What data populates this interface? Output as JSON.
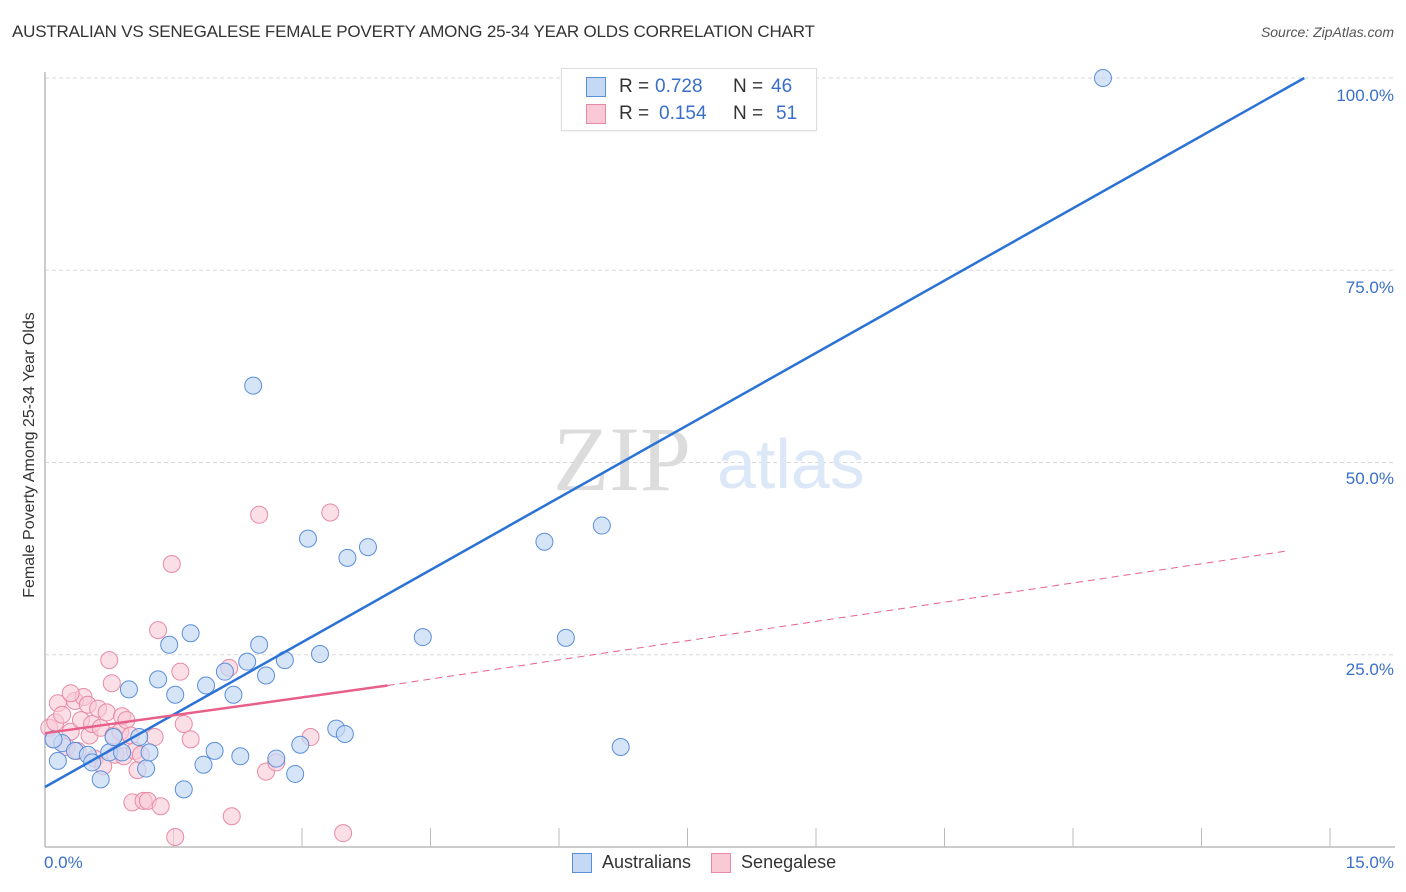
{
  "header": {
    "title": "AUSTRALIAN VS SENEGALESE FEMALE POVERTY AMONG 25-34 YEAR OLDS CORRELATION CHART",
    "source": "Source: ZipAtlas.com"
  },
  "watermark": {
    "zip": "ZIP",
    "atlas": "atlas"
  },
  "colors": {
    "blue_fill": "#c5d9f5",
    "blue_stroke": "#5b8fd9",
    "blue_line": "#2a72d5",
    "pink_fill": "#f9c9d6",
    "pink_stroke": "#e88aa6",
    "pink_line": "#e8608a",
    "axis_text": "#3a6fc9",
    "grid": "#d8d8d8"
  },
  "legend": {
    "rows": [
      {
        "r_label": "R =",
        "r_value": "0.728",
        "n_label": "N =",
        "n_value": "46",
        "series": "Australians"
      },
      {
        "r_label": "R =",
        "r_value": "0.154",
        "n_label": "N =",
        "n_value": "51",
        "series": "Senegalese"
      }
    ]
  },
  "bottom_legend": {
    "items": [
      {
        "label": "Australians"
      },
      {
        "label": "Senegalese"
      }
    ]
  },
  "axes": {
    "ylabel": "Female Poverty Among 25-34 Year Olds",
    "y_ticks": [
      "100.0%",
      "75.0%",
      "50.0%",
      "25.0%"
    ],
    "x_ticks": [
      "0.0%",
      "15.0%"
    ]
  },
  "chart_data": {
    "type": "scatter",
    "title": "AUSTRALIAN VS SENEGALESE FEMALE POVERTY AMONG 25-34 YEAR OLDS CORRELATION CHART",
    "xlabel": "",
    "ylabel": "Female Poverty Among 25-34 Year Olds",
    "xlim": [
      0,
      15
    ],
    "ylim": [
      0,
      100
    ],
    "x_unit": "%",
    "y_unit": "%",
    "grid": true,
    "legend_position": "top-center",
    "series": [
      {
        "name": "Australians",
        "R": 0.728,
        "N": 46,
        "trend": {
          "x0": 0,
          "y0": 7.8,
          "x1": 14.7,
          "y1": 100
        },
        "points": [
          [
            0.15,
            11.2
          ],
          [
            0.2,
            13.5
          ],
          [
            0.35,
            12.5
          ],
          [
            0.5,
            12.0
          ],
          [
            0.55,
            11.0
          ],
          [
            0.65,
            8.8
          ],
          [
            0.75,
            12.3
          ],
          [
            0.8,
            14.3
          ],
          [
            0.9,
            12.3
          ],
          [
            0.98,
            20.5
          ],
          [
            1.1,
            14.3
          ],
          [
            1.18,
            10.2
          ],
          [
            1.22,
            12.3
          ],
          [
            1.32,
            21.8
          ],
          [
            1.45,
            26.3
          ],
          [
            1.52,
            19.8
          ],
          [
            1.62,
            7.5
          ],
          [
            1.7,
            27.8
          ],
          [
            1.85,
            10.7
          ],
          [
            1.88,
            21.0
          ],
          [
            1.98,
            12.5
          ],
          [
            2.1,
            22.8
          ],
          [
            2.2,
            19.8
          ],
          [
            2.28,
            11.8
          ],
          [
            2.36,
            24.1
          ],
          [
            2.43,
            60.0
          ],
          [
            2.5,
            26.3
          ],
          [
            2.58,
            22.3
          ],
          [
            2.7,
            11.5
          ],
          [
            2.8,
            24.3
          ],
          [
            2.92,
            9.5
          ],
          [
            2.98,
            13.3
          ],
          [
            3.07,
            40.1
          ],
          [
            3.21,
            25.1
          ],
          [
            3.4,
            15.4
          ],
          [
            3.5,
            14.7
          ],
          [
            3.53,
            37.6
          ],
          [
            3.77,
            39.0
          ],
          [
            4.41,
            27.3
          ],
          [
            5.83,
            39.7
          ],
          [
            6.08,
            27.2
          ],
          [
            6.36,
            100.0
          ],
          [
            6.5,
            41.8
          ],
          [
            6.72,
            13.0
          ],
          [
            12.35,
            100.0
          ],
          [
            0.1,
            14.0
          ]
        ]
      },
      {
        "name": "Senegalese",
        "R": 0.154,
        "N": 51,
        "trend_solid": {
          "x0": 0,
          "y0": 14.8,
          "x1": 4.0,
          "y1": 21.0
        },
        "trend_dashed": {
          "x0": 4.0,
          "y0": 21.0,
          "x1": 14.5,
          "y1": 38.5
        },
        "points": [
          [
            0.05,
            15.5
          ],
          [
            0.1,
            14.0
          ],
          [
            0.12,
            16.2
          ],
          [
            0.15,
            18.7
          ],
          [
            0.2,
            17.2
          ],
          [
            0.25,
            13.0
          ],
          [
            0.3,
            15.0
          ],
          [
            0.35,
            19.0
          ],
          [
            0.38,
            12.5
          ],
          [
            0.42,
            16.5
          ],
          [
            0.45,
            19.5
          ],
          [
            0.5,
            18.5
          ],
          [
            0.52,
            14.5
          ],
          [
            0.55,
            16.0
          ],
          [
            0.58,
            11.5
          ],
          [
            0.62,
            18.0
          ],
          [
            0.65,
            15.5
          ],
          [
            0.68,
            10.5
          ],
          [
            0.72,
            17.5
          ],
          [
            0.75,
            24.3
          ],
          [
            0.78,
            21.3
          ],
          [
            0.8,
            14.5
          ],
          [
            0.82,
            12.0
          ],
          [
            0.88,
            15.0
          ],
          [
            0.9,
            17.0
          ],
          [
            0.92,
            11.8
          ],
          [
            0.95,
            16.5
          ],
          [
            1.0,
            14.5
          ],
          [
            1.02,
            5.8
          ],
          [
            1.05,
            12.5
          ],
          [
            1.08,
            10.0
          ],
          [
            1.12,
            12.0
          ],
          [
            1.15,
            6.0
          ],
          [
            1.2,
            6.0
          ],
          [
            1.28,
            14.3
          ],
          [
            1.32,
            28.2
          ],
          [
            1.35,
            5.3
          ],
          [
            1.48,
            36.8
          ],
          [
            1.52,
            1.3
          ],
          [
            1.58,
            22.8
          ],
          [
            1.62,
            16.0
          ],
          [
            1.7,
            14.0
          ],
          [
            2.15,
            23.3
          ],
          [
            2.18,
            4.0
          ],
          [
            2.5,
            43.2
          ],
          [
            2.58,
            9.8
          ],
          [
            2.7,
            11.0
          ],
          [
            3.1,
            14.3
          ],
          [
            3.33,
            43.5
          ],
          [
            3.48,
            1.8
          ],
          [
            0.3,
            20.0
          ]
        ]
      }
    ]
  }
}
